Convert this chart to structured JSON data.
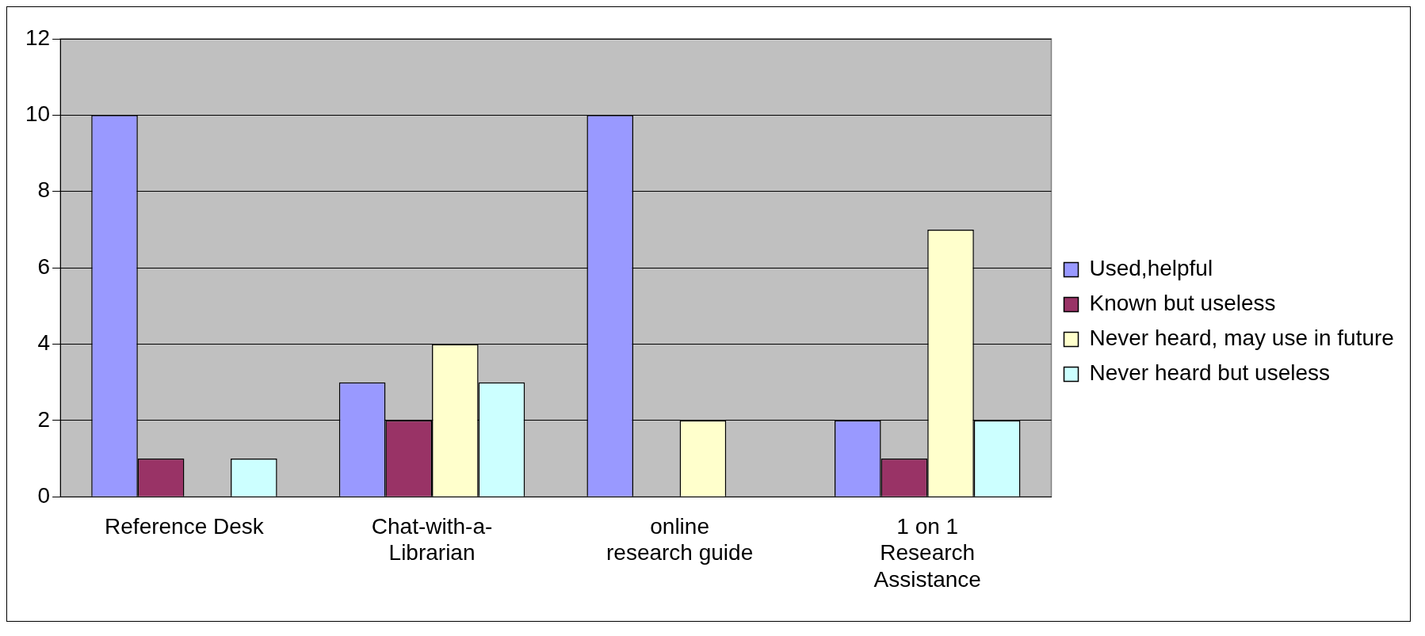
{
  "chart_data": {
    "type": "bar",
    "categories": [
      "Reference Desk",
      "Chat-with-a-Librarian",
      "online research guide",
      "1 on 1 Research Assistance"
    ],
    "series": [
      {
        "name": "Used,helpful",
        "color": "#9999ff",
        "values": [
          10,
          3,
          10,
          2
        ]
      },
      {
        "name": "Known but useless",
        "color": "#993366",
        "values": [
          1,
          2,
          0,
          1
        ]
      },
      {
        "name": "Never heard, may use in future",
        "color": "#ffffcc",
        "values": [
          0,
          4,
          2,
          7
        ]
      },
      {
        "name": "Never heard but useless",
        "color": "#ccffff",
        "values": [
          1,
          3,
          0,
          2
        ]
      }
    ],
    "ylim": [
      0,
      12
    ],
    "yticks": [
      0,
      2,
      4,
      6,
      8,
      10,
      12
    ],
    "grid": "y",
    "legend": "right"
  }
}
